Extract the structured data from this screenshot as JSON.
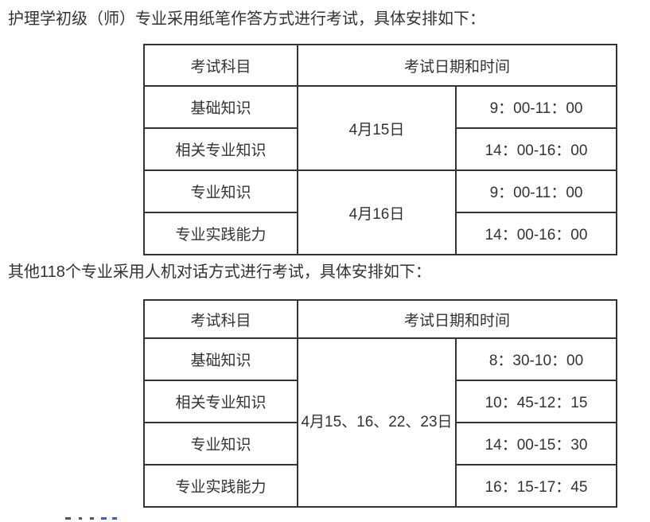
{
  "colors": {
    "background": "#ffffff",
    "text": "#333333",
    "table_border": "#333333"
  },
  "intro": {
    "paper": "护理学初级（师）专业采用纸笔作答方式进行考试，具体安排如下：",
    "computer": "其他118个专业采用人机对话方式进行考试，具体安排如下："
  },
  "table1": {
    "headers": [
      "考试科目",
      "考试日期和时间"
    ],
    "rows": [
      {
        "subject": "基础知识",
        "date": "4月15日",
        "time": "9：00-11：00"
      },
      {
        "subject": "相关专业知识",
        "time": "14：00-16：00"
      },
      {
        "subject": "专业知识",
        "date": "4月16日",
        "time": "9：00-11：00"
      },
      {
        "subject": "专业实践能力",
        "time": "14：00-16：00"
      }
    ]
  },
  "table2": {
    "headers": [
      "考试科目",
      "考试日期和时间"
    ],
    "rows": [
      {
        "subject": "基础知识",
        "date": "4月15、16、22、23日",
        "time": "8：30-10：00"
      },
      {
        "subject": "相关专业知识",
        "time": "10：45-12：15"
      },
      {
        "subject": "专业知识",
        "time": "14：00-15：30"
      },
      {
        "subject": "专业实践能力",
        "time": "16：15-17：45"
      }
    ]
  }
}
